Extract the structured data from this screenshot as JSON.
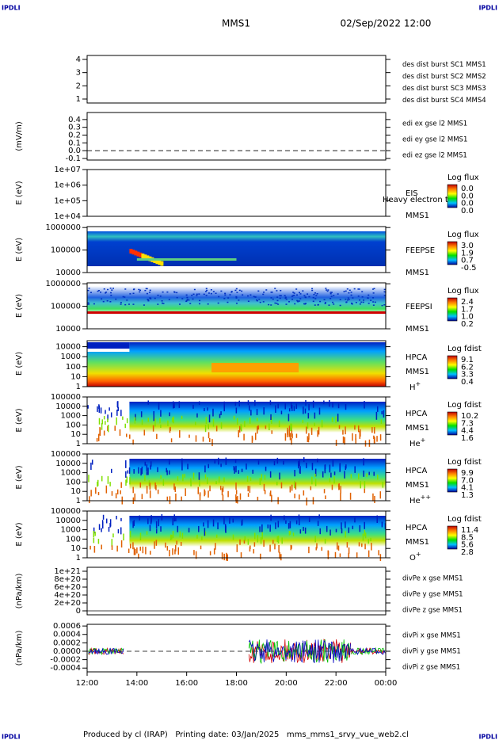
{
  "header": {
    "left_logo": "IPDLI",
    "title": "MMS1",
    "date": "02/Sep/2022 12:00",
    "right_logo": "IPDLI"
  },
  "footer": {
    "text": "Produced by cl (IRAP)   Printing date: 03/Jan/2025   mms_mms1_srvy_vue_web2.cl",
    "left_logo": "IPDLI",
    "right_logo": "IPDLI"
  },
  "xaxis": {
    "ticks": [
      "12:00",
      "14:00",
      "16:00",
      "18:00",
      "20:00",
      "22:00",
      "00:00"
    ]
  },
  "panels": [
    {
      "kind": "line",
      "ylim": [
        0.7,
        4.3
      ],
      "log": false,
      "yticks": [
        1,
        2,
        3,
        4
      ],
      "legend": [
        {
          "text": "des dist burst SC1 MMS1",
          "color": "#0000c0"
        },
        {
          "text": "des dist burst SC2 MMS2",
          "color": "#d000d0"
        },
        {
          "text": "des dist burst SC3 MMS3",
          "color": "#d00000"
        },
        {
          "text": "des dist burst SC4 MMS4",
          "color": "#00c000"
        }
      ]
    },
    {
      "kind": "line",
      "ylabel": "(mV/m)",
      "ylim": [
        -0.12,
        0.49
      ],
      "log": false,
      "yticks": [
        -0.1,
        {
          "value": 0,
          "label": "0.0"
        },
        0.1,
        0.2,
        0.3,
        0.4
      ],
      "legend": [
        {
          "text": "edi ex gse l2 MMS1",
          "color": "#d00000"
        },
        {
          "text": "edi ey gse l2 MMS1",
          "color": "#00c000"
        },
        {
          "text": "edi ez gse l2 MMS1",
          "color": "#0000c0"
        }
      ]
    },
    {
      "kind": "spectrogram",
      "ylabel": "E (eV)",
      "ylim": [
        10000,
        10000000
      ],
      "log": true,
      "yticks": [
        {
          "value": 10000,
          "label": "1e+04"
        },
        {
          "value": 100000,
          "label": "1e+05"
        },
        {
          "value": 1000000,
          "label": "1e+06"
        },
        {
          "value": 10000000,
          "label": "1e+07"
        }
      ],
      "labels": [
        "EIS",
        "MMS1"
      ],
      "overlay": "Heavy electron to",
      "colorbar": {
        "title": "Log flux",
        "labels": [
          "0.0",
          "0.0",
          "0.0",
          "0.0"
        ]
      }
    },
    {
      "kind": "spectrogram",
      "ylabel": "E (eV)",
      "ylim": [
        10000,
        1100000
      ],
      "log": true,
      "yticks": [
        10000,
        100000,
        1000000
      ],
      "labels": [
        "FEEPSE",
        "MMS1"
      ],
      "colorbar": {
        "title": "Log flux",
        "labels": [
          "3.0",
          "1.9",
          "0.7",
          "-0.5"
        ]
      }
    },
    {
      "kind": "spectrogram",
      "ylabel": "E (eV)",
      "ylim": [
        10000,
        1100000
      ],
      "log": true,
      "yticks": [
        10000,
        100000,
        1000000
      ],
      "labels": [
        "FEEPSI",
        "MMS1"
      ],
      "colorbar": {
        "title": "Log flux",
        "labels": [
          "2.4",
          "1.7",
          "1.0",
          "0.2"
        ]
      }
    },
    {
      "kind": "spectrogram",
      "ylabel": "E (eV)",
      "ylim": [
        1,
        40000
      ],
      "log": true,
      "yticks": [
        1,
        10,
        100,
        1000,
        10000
      ],
      "labels": [
        "HPCA",
        "MMS1"
      ],
      "species": {
        "base": "H",
        "sup": "+"
      },
      "colorbar": {
        "title": "Log fdist",
        "labels": [
          "9.1",
          "6.2",
          "3.3",
          "0.4"
        ]
      }
    },
    {
      "kind": "spectrogram",
      "ylabel": "E (eV)",
      "ylim": [
        1,
        100000
      ],
      "log": true,
      "yticks": [
        1,
        10,
        100,
        1000,
        10000,
        100000
      ],
      "labels": [
        "HPCA",
        "MMS1"
      ],
      "species": {
        "base": "He",
        "sup": "+"
      },
      "colorbar": {
        "title": "Log fdist",
        "labels": [
          "10.2",
          "7.3",
          "4.4",
          "1.6"
        ]
      }
    },
    {
      "kind": "spectrogram",
      "ylabel": "E (eV)",
      "ylim": [
        1,
        100000
      ],
      "log": true,
      "yticks": [
        1,
        10,
        100,
        1000,
        10000,
        100000
      ],
      "labels": [
        "HPCA",
        "MMS1"
      ],
      "species": {
        "base": "He",
        "sup": "++"
      },
      "colorbar": {
        "title": "Log fdist",
        "labels": [
          "9.9",
          "7.0",
          "4.1",
          "1.3"
        ]
      }
    },
    {
      "kind": "spectrogram",
      "ylabel": "E (eV)",
      "ylim": [
        1,
        100000
      ],
      "log": true,
      "yticks": [
        1,
        10,
        100,
        1000,
        10000,
        100000
      ],
      "labels": [
        "HPCA",
        "MMS1"
      ],
      "species": {
        "base": "O",
        "sup": "+"
      },
      "colorbar": {
        "title": "Log fdist",
        "labels": [
          "11.4",
          "8.5",
          "5.6",
          "2.8"
        ]
      }
    },
    {
      "kind": "line",
      "ylabel": "(nPa/km)",
      "ylim": [
        -1e+20,
        1.1e+21
      ],
      "log": false,
      "yticks": [
        0,
        {
          "value": 2e+20,
          "label": "2e+20"
        },
        {
          "value": 4e+20,
          "label": "4e+20"
        },
        {
          "value": 6e+20,
          "label": "6e+20"
        },
        {
          "value": 8e+20,
          "label": "8e+20"
        },
        {
          "value": 1e+21,
          "label": "1e+21"
        }
      ],
      "legend": [
        {
          "text": "divPe x gse MMS1",
          "color": "#d00000"
        },
        {
          "text": "divPe y gse MMS1",
          "color": "#00c000"
        },
        {
          "text": "divPe z gse MMS1",
          "color": "#0000c0"
        }
      ]
    },
    {
      "kind": "line",
      "ylabel": "(nPa/km)",
      "ylim": [
        -0.00049,
        0.00064
      ],
      "log": false,
      "yticks": [
        -0.0004,
        -0.0002,
        {
          "value": 0,
          "label": "0.0000"
        },
        0.0002,
        0.0004,
        0.0006
      ],
      "legend": [
        {
          "text": "divPi x gse MMS1",
          "color": "#d00000"
        },
        {
          "text": "divPi y gse MMS1",
          "color": "#00c000"
        },
        {
          "text": "divPi z gse MMS1",
          "color": "#0000c0"
        }
      ]
    }
  ]
}
